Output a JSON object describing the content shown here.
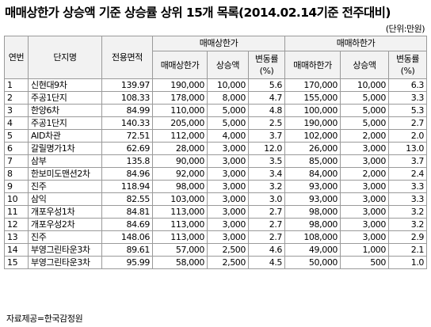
{
  "title": "매매상한가 상승액 기준 상승률 상위 15개 목록(2014.02.14기준 전주대비)",
  "unit": "(단위:만원)",
  "headers": {
    "no": "연번",
    "complex": "단지명",
    "area": "전용면적",
    "upper_group": "매매상한가",
    "lower_group": "매매하한가",
    "upper_price": "매매상한가",
    "upper_rise": "상승액",
    "upper_rate": "변동률\n(%)",
    "lower_price": "매매하한가",
    "lower_rise": "상승액",
    "lower_rate": "변동률\n(%)"
  },
  "rows": [
    {
      "no": "1",
      "name": "신현대9차",
      "area": "139.97",
      "up_price": "190,000",
      "up_rise": "10,000",
      "up_rate": "5.6",
      "lo_price": "170,000",
      "lo_rise": "10,000",
      "lo_rate": "6.3"
    },
    {
      "no": "2",
      "name": "주공1단지",
      "area": "108.33",
      "up_price": "178,000",
      "up_rise": "8,000",
      "up_rate": "4.7",
      "lo_price": "155,000",
      "lo_rise": "5,000",
      "lo_rate": "3.3"
    },
    {
      "no": "3",
      "name": "한양6차",
      "area": "84.99",
      "up_price": "110,000",
      "up_rise": "5,000",
      "up_rate": "4.8",
      "lo_price": "100,000",
      "lo_rise": "5,000",
      "lo_rate": "5.3"
    },
    {
      "no": "4",
      "name": "주공1단지",
      "area": "140.33",
      "up_price": "205,000",
      "up_rise": "5,000",
      "up_rate": "2.5",
      "lo_price": "190,000",
      "lo_rise": "5,000",
      "lo_rate": "2.7"
    },
    {
      "no": "5",
      "name": "AID차관",
      "area": "72.51",
      "up_price": "112,000",
      "up_rise": "4,000",
      "up_rate": "3.7",
      "lo_price": "102,000",
      "lo_rise": "2,000",
      "lo_rate": "2.0"
    },
    {
      "no": "6",
      "name": "갈릴명가1차",
      "area": "62.69",
      "up_price": "28,000",
      "up_rise": "3,000",
      "up_rate": "12.0",
      "lo_price": "26,000",
      "lo_rise": "3,000",
      "lo_rate": "13.0"
    },
    {
      "no": "7",
      "name": "삼부",
      "area": "135.8",
      "up_price": "90,000",
      "up_rise": "3,000",
      "up_rate": "3.5",
      "lo_price": "85,000",
      "lo_rise": "3,000",
      "lo_rate": "3.7"
    },
    {
      "no": "8",
      "name": "한보미도맨션2차",
      "area": "84.96",
      "up_price": "92,000",
      "up_rise": "3,000",
      "up_rate": "3.4",
      "lo_price": "84,000",
      "lo_rise": "2,000",
      "lo_rate": "2.4"
    },
    {
      "no": "9",
      "name": "진주",
      "area": "118.94",
      "up_price": "98,000",
      "up_rise": "3,000",
      "up_rate": "3.2",
      "lo_price": "93,000",
      "lo_rise": "3,000",
      "lo_rate": "3.3"
    },
    {
      "no": "10",
      "name": "삼익",
      "area": "82.55",
      "up_price": "103,000",
      "up_rise": "3,000",
      "up_rate": "3.0",
      "lo_price": "93,000",
      "lo_rise": "3,000",
      "lo_rate": "3.3"
    },
    {
      "no": "11",
      "name": "개포우성1차",
      "area": "84.81",
      "up_price": "113,000",
      "up_rise": "3,000",
      "up_rate": "2.7",
      "lo_price": "98,000",
      "lo_rise": "3,000",
      "lo_rate": "3.2"
    },
    {
      "no": "12",
      "name": "개포우성2차",
      "area": "84.69",
      "up_price": "113,000",
      "up_rise": "3,000",
      "up_rate": "2.7",
      "lo_price": "98,000",
      "lo_rise": "3,000",
      "lo_rate": "3.2"
    },
    {
      "no": "13",
      "name": "진주",
      "area": "148.06",
      "up_price": "113,000",
      "up_rise": "3,000",
      "up_rate": "2.7",
      "lo_price": "108,000",
      "lo_rise": "3,000",
      "lo_rate": "2.9"
    },
    {
      "no": "14",
      "name": "부영그린타운3차",
      "area": "89.61",
      "up_price": "57,000",
      "up_rise": "2,500",
      "up_rate": "4.6",
      "lo_price": "49,000",
      "lo_rise": "1,000",
      "lo_rate": "2.1"
    },
    {
      "no": "15",
      "name": "부영그린타운3차",
      "area": "95.99",
      "up_price": "58,000",
      "up_rise": "2,500",
      "up_rate": "4.5",
      "lo_price": "50,000",
      "lo_rise": "500",
      "lo_rate": "1.0"
    }
  ],
  "source": "자료제공=한국감정원"
}
